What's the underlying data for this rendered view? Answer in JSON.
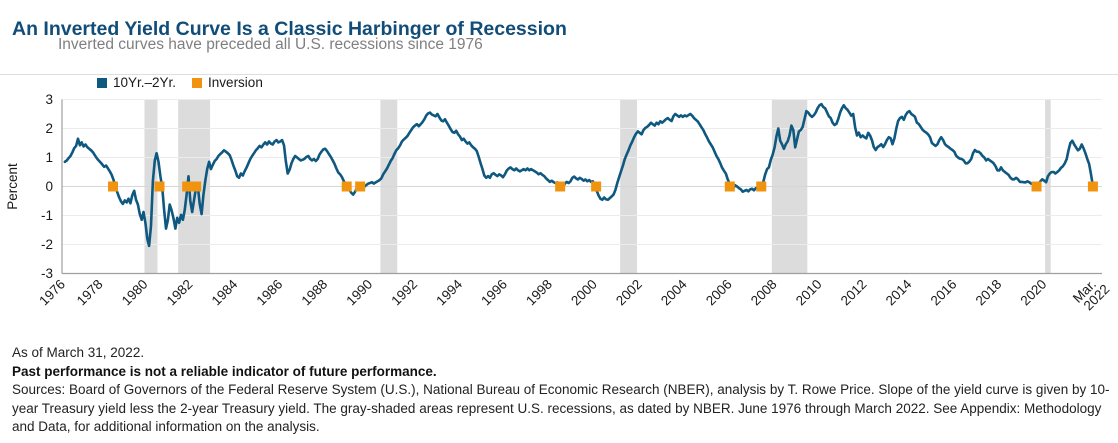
{
  "page": {
    "title": "An Inverted Yield Curve Is a Classic Harbinger of Recession",
    "subtitle": "Inverted curves have preceded all U.S. recessions since 1976"
  },
  "legend": {
    "series_label": "10Yr.–2Yr.",
    "inversion_label": "Inversion"
  },
  "footnotes": {
    "as_of": "As of March 31, 2022.",
    "disclaimer": "Past performance is not a reliable indicator of future performance.",
    "sources": "Sources: Board of Governors of the Federal Reserve System (U.S.), National Bureau of Economic Research (NBER), analysis by T. Rowe Price. Slope of the yield curve is given by 10-year Treasury yield less the 2-year Treasury yield. The gray-shaded areas represent U.S. recessions, as dated by NBER. June 1976 through March 2022. See Appendix: Methodology and Data, for additional information on the analysis."
  },
  "colors": {
    "line": "#0f5880",
    "inversion": "#f09410",
    "recession_band": "#dcdcdc",
    "grid": "#ececec",
    "zero_line": "#d6d6d6",
    "axis": "#9f9f9f",
    "title": "#114d78",
    "subtitle": "#7f7f7f",
    "tick_text": "#1a1a1a"
  },
  "chart_data": {
    "type": "line",
    "title": "10-year Treasury yield minus 2-year Treasury yield, June 1976 through March 2022",
    "ylabel": "Percent",
    "ylim": [
      -3,
      3
    ],
    "y_ticks": [
      3,
      2,
      1,
      0,
      -1,
      -2,
      -3
    ],
    "x_ticks": [
      1976,
      1978,
      1980,
      1982,
      1984,
      1986,
      1988,
      1990,
      1992,
      1994,
      1996,
      1998,
      2000,
      2002,
      2004,
      2006,
      2008,
      2010,
      2012,
      2014,
      2016,
      2018,
      2020
    ],
    "final_x_tick": {
      "line1": "Mar.",
      "line2": "2022",
      "year": 2022.21
    },
    "grid": true,
    "legend_position": "top-left",
    "series": {
      "name": "10Yr.–2Yr.",
      "units": "percent",
      "start_year": 1976.4583,
      "step_years": 0.083333,
      "values": [
        0.85,
        0.9,
        0.98,
        1.05,
        1.18,
        1.32,
        1.4,
        1.65,
        1.42,
        1.52,
        1.38,
        1.45,
        1.35,
        1.3,
        1.25,
        1.18,
        1.08,
        0.98,
        0.9,
        0.83,
        0.76,
        0.68,
        0.72,
        0.62,
        0.52,
        0.4,
        0.22,
        0.0,
        -0.2,
        -0.38,
        -0.52,
        -0.6,
        -0.48,
        -0.55,
        -0.42,
        -0.58,
        -0.3,
        -0.15,
        -0.45,
        -0.62,
        -0.95,
        -1.15,
        -0.88,
        -1.25,
        -1.8,
        -2.05,
        -1.35,
        0.2,
        0.9,
        1.15,
        0.85,
        0.35,
        -0.05,
        -0.8,
        -1.45,
        -1.15,
        -0.62,
        -0.82,
        -1.1,
        -1.45,
        -1.08,
        -1.25,
        -0.98,
        -1.15,
        -0.82,
        -0.28,
        0.35,
        -0.5,
        -0.88,
        -0.45,
        -0.05,
        0.02,
        -0.6,
        -0.95,
        -0.3,
        0.2,
        0.6,
        0.85,
        0.6,
        0.75,
        0.88,
        0.95,
        1.05,
        1.12,
        1.18,
        1.25,
        1.2,
        1.15,
        1.08,
        0.92,
        0.72,
        0.55,
        0.35,
        0.3,
        0.45,
        0.38,
        0.52,
        0.65,
        0.8,
        0.95,
        1.05,
        1.15,
        1.25,
        1.32,
        1.4,
        1.35,
        1.45,
        1.52,
        1.45,
        1.55,
        1.48,
        1.45,
        1.55,
        1.6,
        1.52,
        1.55,
        1.6,
        1.42,
        0.88,
        0.45,
        0.58,
        0.8,
        0.95,
        1.05,
        1.0,
        0.95,
        0.9,
        0.92,
        0.96,
        1.02,
        1.05,
        0.95,
        0.9,
        0.95,
        0.88,
        0.95,
        1.1,
        1.2,
        1.28,
        1.3,
        1.22,
        1.12,
        1.02,
        0.9,
        0.78,
        0.62,
        0.48,
        0.42,
        0.32,
        0.18,
        0.08,
        -0.02,
        -0.12,
        -0.22,
        -0.28,
        -0.18,
        -0.05,
        0.05,
        -0.08,
        -0.12,
        0.0,
        0.05,
        0.1,
        0.12,
        0.15,
        0.1,
        0.14,
        0.18,
        0.22,
        0.28,
        0.42,
        0.52,
        0.62,
        0.75,
        0.88,
        0.98,
        1.12,
        1.25,
        1.32,
        1.42,
        1.55,
        1.62,
        1.68,
        1.75,
        1.85,
        1.95,
        2.05,
        2.1,
        2.15,
        2.08,
        2.15,
        2.22,
        2.32,
        2.45,
        2.52,
        2.55,
        2.48,
        2.45,
        2.42,
        2.5,
        2.38,
        2.28,
        2.25,
        2.32,
        2.2,
        2.1,
        1.98,
        1.88,
        1.85,
        1.92,
        1.8,
        1.72,
        1.6,
        1.65,
        1.55,
        1.48,
        1.52,
        1.42,
        1.35,
        1.3,
        1.22,
        1.02,
        0.8,
        0.6,
        0.38,
        0.3,
        0.36,
        0.3,
        0.42,
        0.46,
        0.4,
        0.36,
        0.42,
        0.38,
        0.32,
        0.42,
        0.55,
        0.62,
        0.66,
        0.6,
        0.56,
        0.62,
        0.56,
        0.52,
        0.56,
        0.6,
        0.56,
        0.62,
        0.56,
        0.6,
        0.56,
        0.52,
        0.48,
        0.42,
        0.46,
        0.4,
        0.36,
        0.28,
        0.22,
        0.16,
        0.2,
        0.15,
        0.12,
        0.14,
        0.08,
        0.04,
        -0.02,
        0.1,
        0.16,
        0.12,
        0.18,
        0.3,
        0.34,
        0.28,
        0.24,
        0.3,
        0.26,
        0.2,
        0.24,
        0.18,
        0.22,
        0.16,
        0.18,
        0.05,
        -0.15,
        -0.3,
        -0.42,
        -0.46,
        -0.38,
        -0.44,
        -0.46,
        -0.4,
        -0.34,
        -0.28,
        -0.12,
        0.12,
        0.32,
        0.52,
        0.72,
        0.95,
        1.1,
        1.25,
        1.42,
        1.55,
        1.7,
        1.82,
        1.9,
        1.85,
        1.8,
        1.95,
        2.02,
        2.06,
        2.12,
        2.2,
        2.15,
        2.1,
        2.2,
        2.15,
        2.25,
        2.2,
        2.26,
        2.32,
        2.36,
        2.3,
        2.26,
        2.42,
        2.5,
        2.45,
        2.4,
        2.45,
        2.4,
        2.45,
        2.42,
        2.46,
        2.5,
        2.44,
        2.36,
        2.3,
        2.24,
        2.14,
        2.04,
        1.94,
        1.8,
        1.68,
        1.55,
        1.45,
        1.34,
        1.2,
        1.05,
        0.94,
        0.8,
        0.65,
        0.54,
        0.44,
        0.25,
        0.1,
        0.0,
        -0.05,
        0.04,
        0.0,
        -0.06,
        -0.1,
        -0.18,
        -0.15,
        -0.12,
        -0.17,
        -0.1,
        -0.08,
        -0.13,
        -0.06,
        -0.02,
        -0.08,
        0.05,
        0.16,
        0.42,
        0.6,
        0.66,
        0.92,
        1.1,
        1.35,
        1.72,
        2.0,
        1.58,
        1.45,
        1.3,
        1.46,
        1.56,
        1.76,
        2.1,
        1.95,
        1.35,
        1.62,
        1.9,
        1.95,
        2.05,
        2.32,
        2.6,
        2.55,
        2.46,
        2.4,
        2.46,
        2.56,
        2.7,
        2.8,
        2.84,
        2.74,
        2.7,
        2.56,
        2.42,
        2.36,
        2.2,
        2.12,
        2.16,
        2.32,
        2.55,
        2.7,
        2.8,
        2.7,
        2.64,
        2.54,
        2.44,
        2.5,
        2.05,
        1.76,
        1.86,
        1.7,
        1.76,
        1.7,
        1.66,
        1.85,
        1.76,
        1.6,
        1.36,
        1.26,
        1.36,
        1.4,
        1.46,
        1.36,
        1.46,
        1.6,
        1.7,
        1.66,
        1.46,
        1.66,
        2.0,
        2.26,
        2.36,
        2.4,
        2.3,
        2.46,
        2.56,
        2.6,
        2.5,
        2.46,
        2.4,
        2.2,
        2.16,
        2.06,
        1.96,
        1.9,
        1.86,
        1.8,
        1.7,
        1.5,
        1.45,
        1.4,
        1.46,
        1.6,
        1.7,
        1.6,
        1.46,
        1.4,
        1.36,
        1.3,
        1.26,
        1.2,
        1.06,
        1.0,
        0.96,
        0.95,
        0.9,
        0.8,
        0.8,
        0.86,
        0.95,
        1.15,
        1.26,
        1.2,
        1.2,
        1.15,
        1.06,
        1.0,
        0.9,
        0.95,
        0.9,
        0.85,
        0.8,
        0.7,
        0.56,
        0.55,
        0.66,
        0.55,
        0.5,
        0.45,
        0.4,
        0.3,
        0.25,
        0.25,
        0.3,
        0.25,
        0.16,
        0.16,
        0.15,
        0.14,
        0.18,
        0.15,
        0.1,
        0.08,
        -0.02,
        0.05,
        0.1,
        0.18,
        0.25,
        0.2,
        0.15,
        0.35,
        0.45,
        0.5,
        0.5,
        0.45,
        0.5,
        0.56,
        0.65,
        0.7,
        0.8,
        0.95,
        1.25,
        1.5,
        1.58,
        1.45,
        1.35,
        1.25,
        1.3,
        1.45,
        1.32,
        1.15,
        0.95,
        0.78,
        0.42,
        0.02
      ]
    },
    "inversion_marker_years": [
      1978.6,
      1980.67,
      1981.9,
      1982.3,
      1989.0,
      1989.6,
      1998.5,
      2000.1,
      2006.05,
      2007.45,
      2019.7,
      2022.21
    ],
    "recession_bands": [
      [
        1980.0,
        1980.58
      ],
      [
        1981.5,
        1982.92
      ],
      [
        1990.5,
        1991.25
      ],
      [
        2001.17,
        2001.92
      ],
      [
        2007.92,
        2009.5
      ],
      [
        2020.08,
        2020.33
      ]
    ]
  }
}
